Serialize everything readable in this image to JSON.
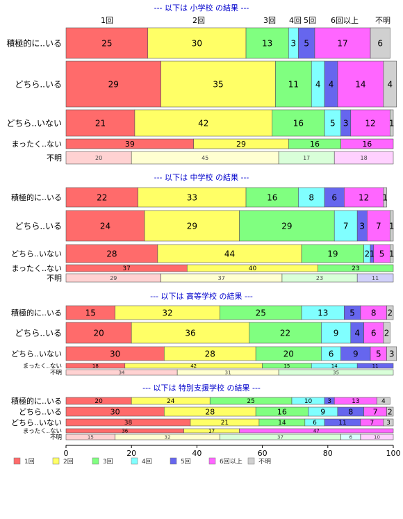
{
  "chart_data": {
    "type": "bar",
    "orientation": "horizontal",
    "stacked": true,
    "xlim": [
      0,
      100
    ],
    "x_ticks": [
      0,
      20,
      40,
      60,
      80,
      100
    ],
    "grid": false,
    "legend_position": "bottom",
    "categories_of_answer": [
      "1回",
      "2回",
      "3回",
      "4回",
      "5回",
      "6回以上",
      "不明"
    ],
    "colors": [
      "#ff6b6b",
      "#ffff66",
      "#80ff80",
      "#80ffff",
      "#6666ee",
      "#ff66ff",
      "#d0d0d0"
    ],
    "top_labels": [
      "1回",
      "2回",
      "3回",
      "4回",
      "5回",
      "6回以上",
      "不明"
    ],
    "panels": [
      {
        "title": "--- 以下は 小学校 の結果 ---",
        "rows": [
          {
            "label": "積極的に..いる",
            "values": [
              25,
              30,
              13,
              3,
              5,
              17,
              6
            ]
          },
          {
            "label": "どちら..いる",
            "values": [
              29,
              35,
              11,
              4,
              4,
              14,
              4
            ]
          },
          {
            "label": "どちら..いない",
            "values": [
              21,
              42,
              16,
              5,
              3,
              12,
              1
            ]
          },
          {
            "label": "まったく..ない",
            "values": [
              39,
              29,
              16,
              0,
              0,
              16,
              0
            ]
          },
          {
            "label": "不明",
            "values": [
              20,
              45,
              17,
              0,
              0,
              18,
              0
            ]
          }
        ]
      },
      {
        "title": "--- 以下は 中学校 の結果 ---",
        "rows": [
          {
            "label": "積極的に..いる",
            "values": [
              22,
              33,
              16,
              8,
              6,
              12,
              1
            ]
          },
          {
            "label": "どちら..いる",
            "values": [
              24,
              29,
              29,
              7,
              3,
              7,
              1
            ]
          },
          {
            "label": "どちら..いない",
            "values": [
              28,
              44,
              19,
              2,
              1,
              5,
              1
            ]
          },
          {
            "label": "まったく..ない",
            "values": [
              37,
              40,
              23,
              0,
              0,
              0,
              0
            ]
          },
          {
            "label": "不明",
            "values": [
              29,
              37,
              23,
              0,
              11,
              0,
              0
            ]
          }
        ]
      },
      {
        "title": "--- 以下は 高等学校 の結果 ---",
        "rows": [
          {
            "label": "積極的に..いる",
            "values": [
              15,
              32,
              25,
              13,
              5,
              8,
              2
            ]
          },
          {
            "label": "どちら..いる",
            "values": [
              20,
              36,
              22,
              9,
              4,
              6,
              2
            ]
          },
          {
            "label": "どちら..いない",
            "values": [
              30,
              28,
              20,
              6,
              9,
              5,
              3
            ]
          },
          {
            "label": "まったく..ない",
            "values": [
              18,
              42,
              15,
              14,
              11,
              0,
              0
            ]
          },
          {
            "label": "不明",
            "values": [
              34,
              31,
              35,
              0,
              0,
              0,
              0
            ]
          }
        ]
      },
      {
        "title": "--- 以下は 特別支援学校 の結果 ---",
        "rows": [
          {
            "label": "積極的に..いる",
            "values": [
              20,
              24,
              25,
              10,
              3,
              13,
              4
            ]
          },
          {
            "label": "どちら..いる",
            "values": [
              30,
              28,
              16,
              9,
              8,
              7,
              2
            ]
          },
          {
            "label": "どちら..いない",
            "values": [
              38,
              21,
              14,
              6,
              11,
              7,
              3
            ]
          },
          {
            "label": "まったく..ない",
            "values": [
              36,
              17,
              0,
              0,
              0,
              47,
              0
            ]
          },
          {
            "label": "不明",
            "values": [
              15,
              32,
              37,
              6,
              0,
              10,
              0
            ]
          }
        ]
      }
    ]
  }
}
